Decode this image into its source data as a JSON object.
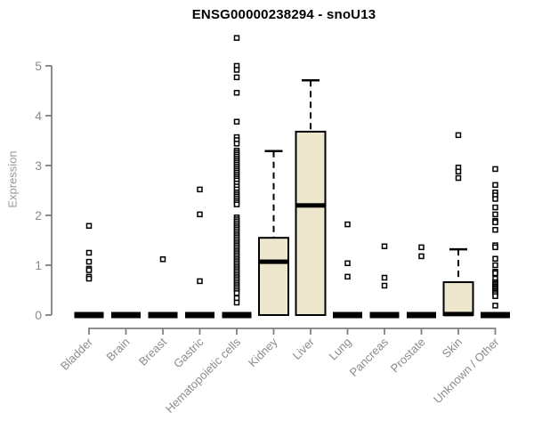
{
  "chart_data": {
    "type": "boxplot",
    "title": "ENSG00000238294 - snoU13",
    "ylabel": "Expression",
    "xlabel": "",
    "ylim": [
      0,
      5.6
    ],
    "yticks": [
      0,
      1,
      2,
      3,
      4,
      5
    ],
    "grid": false,
    "legend": "none",
    "colors": {
      "box_fill": "#ECE7CD",
      "box_border": "#000000",
      "median": "#000000",
      "whisker": "#000000",
      "outlier_stroke": "#000000",
      "outlier_fill": "#ffffff",
      "axis": "#808080",
      "tick_label": "#8C8C8C",
      "title": "#000000",
      "background": "#ffffff"
    },
    "categories": [
      "Bladder",
      "Brain",
      "Breast",
      "Gastric",
      "Hematopoietic cells",
      "Kidney",
      "Liver",
      "Lung",
      "Pancreas",
      "Prostate",
      "Skin",
      "Unknown / Other"
    ],
    "series": [
      {
        "category": "Bladder",
        "collapsed": true,
        "box": {
          "q1": 0,
          "median": 0,
          "q3": 0,
          "whisker_low": 0,
          "whisker_high": 0
        },
        "outliers": [
          1.79,
          1.25,
          1.07,
          0.93,
          0.9,
          0.77,
          0.73
        ]
      },
      {
        "category": "Brain",
        "collapsed": true,
        "box": {
          "q1": 0,
          "median": 0,
          "q3": 0,
          "whisker_low": 0,
          "whisker_high": 0
        },
        "outliers": []
      },
      {
        "category": "Breast",
        "collapsed": true,
        "box": {
          "q1": 0,
          "median": 0,
          "q3": 0,
          "whisker_low": 0,
          "whisker_high": 0
        },
        "outliers": [
          1.12
        ]
      },
      {
        "category": "Gastric",
        "collapsed": true,
        "box": {
          "q1": 0,
          "median": 0,
          "q3": 0,
          "whisker_low": 0,
          "whisker_high": 0
        },
        "outliers": [
          2.52,
          2.02,
          0.68
        ]
      },
      {
        "category": "Hematopoietic cells",
        "collapsed": true,
        "box": {
          "q1": 0,
          "median": 0,
          "q3": 0,
          "whisker_low": 0,
          "whisker_high": 0
        },
        "outliers": [
          5.56,
          5.0,
          4.92,
          4.77,
          4.46,
          3.88,
          3.57,
          3.51,
          3.44,
          3.3,
          3.26,
          3.22,
          3.18,
          3.14,
          3.1,
          3.06,
          3.02,
          2.98,
          2.94,
          2.9,
          2.86,
          2.82,
          2.78,
          2.74,
          2.7,
          2.64,
          2.58,
          2.52,
          2.46,
          2.42,
          2.38,
          2.34,
          2.3,
          2.26,
          2.22,
          1.96,
          1.92,
          1.88,
          1.84,
          1.8,
          1.76,
          1.72,
          1.68,
          1.64,
          1.6,
          1.56,
          1.52,
          1.48,
          1.44,
          1.4,
          1.36,
          1.32,
          1.28,
          1.24,
          1.2,
          1.16,
          1.12,
          1.08,
          1.04,
          1.0,
          0.96,
          0.92,
          0.88,
          0.84,
          0.8,
          0.76,
          0.72,
          0.68,
          0.64,
          0.6,
          0.56,
          0.52,
          0.48,
          0.44,
          0.34,
          0.25
        ]
      },
      {
        "category": "Kidney",
        "collapsed": false,
        "box": {
          "q1": 0,
          "median": 1.07,
          "q3": 1.55,
          "whisker_low": 0,
          "whisker_high": 3.29
        },
        "outliers": []
      },
      {
        "category": "Liver",
        "collapsed": false,
        "box": {
          "q1": 0,
          "median": 2.2,
          "q3": 3.68,
          "whisker_low": 0,
          "whisker_high": 4.71
        },
        "outliers": []
      },
      {
        "category": "Lung",
        "collapsed": true,
        "box": {
          "q1": 0,
          "median": 0,
          "q3": 0,
          "whisker_low": 0,
          "whisker_high": 0
        },
        "outliers": [
          1.82,
          1.04,
          0.77
        ]
      },
      {
        "category": "Pancreas",
        "collapsed": true,
        "box": {
          "q1": 0,
          "median": 0,
          "q3": 0,
          "whisker_low": 0,
          "whisker_high": 0
        },
        "outliers": [
          1.38,
          0.75,
          0.59
        ]
      },
      {
        "category": "Prostate",
        "collapsed": true,
        "box": {
          "q1": 0,
          "median": 0,
          "q3": 0,
          "whisker_low": 0,
          "whisker_high": 0
        },
        "outliers": [
          1.36,
          1.18
        ]
      },
      {
        "category": "Skin",
        "collapsed": false,
        "box": {
          "q1": 0,
          "median": 0.02,
          "q3": 0.66,
          "whisker_low": 0,
          "whisker_high": 1.32
        },
        "outliers": [
          3.61,
          2.96,
          2.88,
          2.75
        ]
      },
      {
        "category": "Unknown / Other",
        "collapsed": true,
        "box": {
          "q1": 0,
          "median": 0,
          "q3": 0,
          "whisker_low": 0,
          "whisker_high": 0
        },
        "outliers": [
          2.93,
          2.61,
          2.46,
          2.4,
          2.33,
          2.16,
          2.02,
          1.89,
          1.86,
          1.71,
          1.4,
          1.36,
          1.13,
          1.0,
          0.87,
          0.84,
          0.73,
          0.66,
          0.63,
          0.6,
          0.57,
          0.54,
          0.51,
          0.48,
          0.45,
          0.42,
          0.38,
          0.19
        ]
      }
    ]
  }
}
